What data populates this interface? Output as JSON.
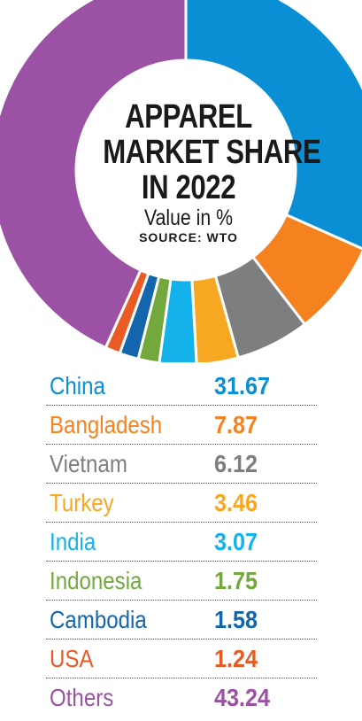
{
  "chart_data": {
    "type": "pie",
    "style": "donut",
    "title_lines": [
      "APPAREL",
      "MARKET SHARE",
      "IN 2022"
    ],
    "subtitle": "Value in %",
    "source": "SOURCE: WTO",
    "series": [
      {
        "name": "China",
        "value": 31.67,
        "color": "#0a8fd5"
      },
      {
        "name": "Bangladesh",
        "value": 7.87,
        "color": "#f5821f"
      },
      {
        "name": "Vietnam",
        "value": 6.12,
        "color": "#7c7e80"
      },
      {
        "name": "Turkey",
        "value": 3.46,
        "color": "#f7a823"
      },
      {
        "name": "India",
        "value": 3.07,
        "color": "#13b2ea"
      },
      {
        "name": "Indonesia",
        "value": 1.75,
        "color": "#72a83c"
      },
      {
        "name": "Cambodia",
        "value": 1.58,
        "color": "#1366ad"
      },
      {
        "name": "USA",
        "value": 1.24,
        "color": "#ea5a24"
      },
      {
        "name": "Others",
        "value": 43.24,
        "color": "#9b52a4"
      }
    ],
    "value_labels": [
      "31.67",
      "7.87",
      "6.12",
      "3.46",
      "3.07",
      "1.75",
      "1.58",
      "1.24",
      "43.24"
    ]
  }
}
